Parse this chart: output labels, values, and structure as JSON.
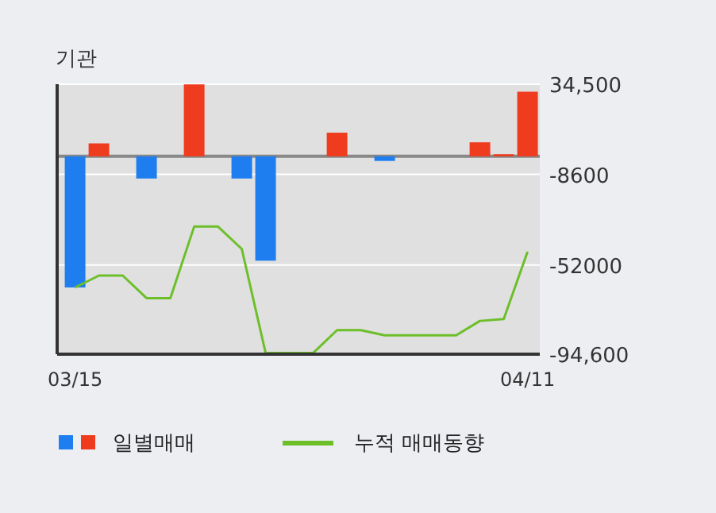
{
  "chart_data": {
    "type": "bar",
    "title": "기관",
    "categories": [
      "03/15",
      null,
      null,
      null,
      null,
      null,
      null,
      null,
      null,
      null,
      null,
      null,
      null,
      null,
      null,
      null,
      null,
      null,
      null,
      "04/11"
    ],
    "series": [
      {
        "name": "일별매매",
        "colors": [
          "#1e7ef0",
          "#f03c1e",
          null,
          "#1e7ef0",
          null,
          "#f03c1e",
          null,
          "#1e7ef0",
          "#1e7ef0",
          null,
          null,
          "#f03c1e",
          null,
          "#1e7ef0",
          null,
          null,
          null,
          "#f03c1e",
          "#f03c1e",
          "#f03c1e"
        ],
        "values": [
          -62700,
          6200,
          null,
          -10600,
          null,
          34400,
          null,
          -10600,
          -49900,
          null,
          null,
          11300,
          null,
          -2200,
          null,
          null,
          null,
          6700,
          1000,
          30900
        ]
      },
      {
        "name": "누적 매매동향",
        "type": "line",
        "color": "#6dbf2a",
        "values": [
          -62700,
          -57000,
          -57000,
          -67800,
          -67800,
          -33600,
          -33600,
          -44300,
          -94000,
          -94000,
          -94000,
          -83100,
          -83100,
          -85600,
          -85600,
          -85600,
          -85600,
          -78700,
          -77800,
          -45600
        ]
      }
    ],
    "ylim": [
      -94600,
      34500
    ],
    "yticks": [
      {
        "value": 34500,
        "label": "34,500"
      },
      -8600,
      -52000,
      {
        "value": -94600,
        "label": "-94,600"
      }
    ],
    "ref_lines": [
      {
        "axis": "y",
        "value": 0,
        "color": "#888888"
      }
    ],
    "grid": "y",
    "legend": "bottom"
  }
}
